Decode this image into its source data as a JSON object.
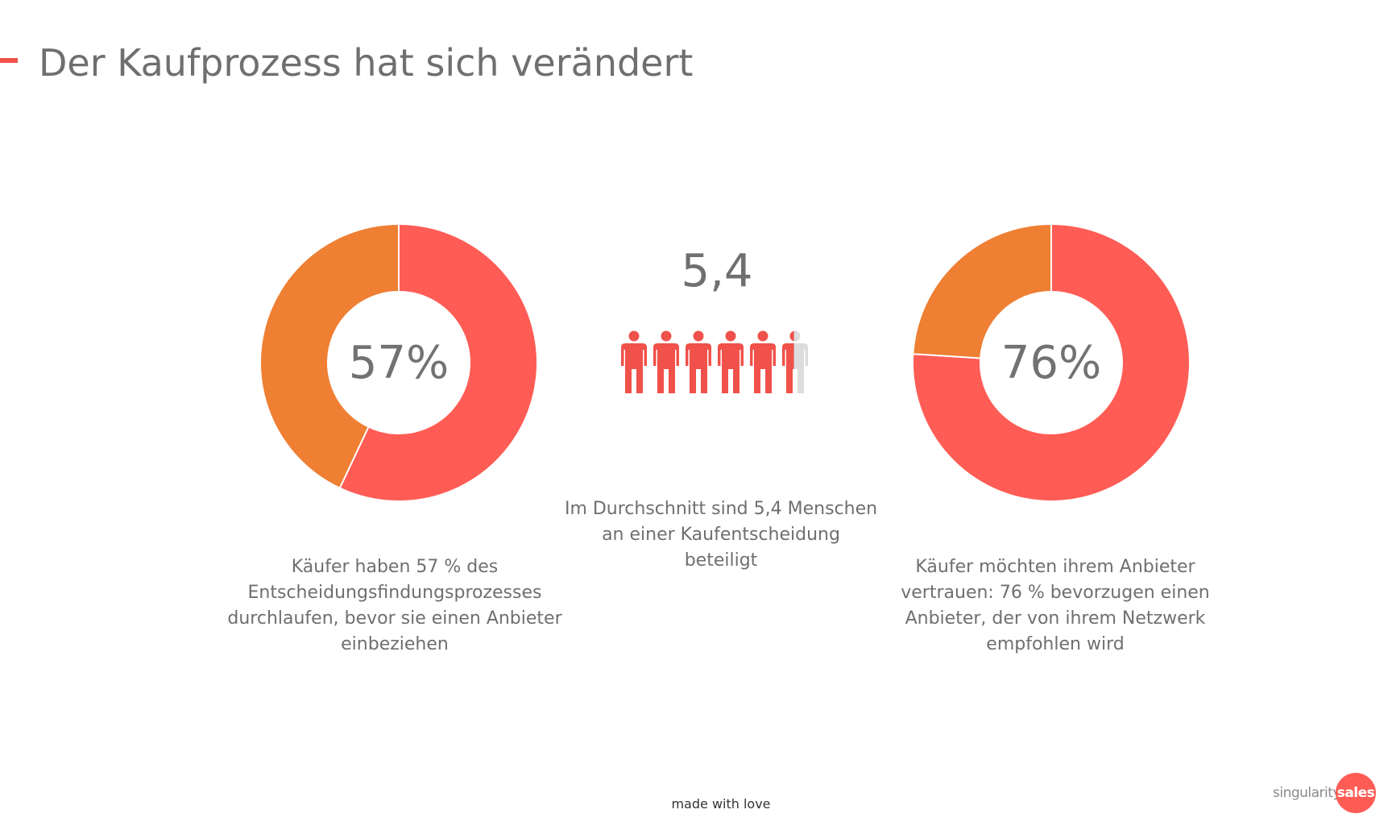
{
  "header": {
    "title": "Der Kaufprozess hat sich verändert"
  },
  "colors": {
    "accent": "#f0514a",
    "primary": "#ff5c55",
    "secondary": "#ee7f33",
    "person_gray": "#dcdcdc"
  },
  "chart_data": [
    {
      "type": "pie",
      "variant": "donut",
      "title": "",
      "center_label": "57%",
      "slices": [
        {
          "label": "",
          "value": 57,
          "color": "#ff5c55"
        },
        {
          "label": "",
          "value": 43,
          "color": "#ee7f33"
        }
      ]
    },
    {
      "type": "pie",
      "variant": "donut",
      "title": "",
      "center_label": "76%",
      "slices": [
        {
          "label": "",
          "value": 76,
          "color": "#ff5c55"
        },
        {
          "label": "",
          "value": 24,
          "color": "#ee7f33"
        }
      ]
    }
  ],
  "stats": {
    "left_description": "Käufer haben 57 % des Entscheidungsfindungsprozesses durchlaufen, bevor sie einen Anbieter einbeziehen",
    "middle_value": "5,4",
    "middle_people_count": 5.4,
    "middle_description": "Im Durchschnitt sind 5,4 Menschen an einer Kaufentscheidung beteiligt",
    "right_description": "Käufer möchten ihrem Anbieter vertrauen: 76 % bevorzugen einen Anbieter, der von ihrem Netzwerk empfohlen wird"
  },
  "footer": {
    "text": "made with love"
  },
  "logo": {
    "text_main": "singularity",
    "text_badge": "sales"
  }
}
